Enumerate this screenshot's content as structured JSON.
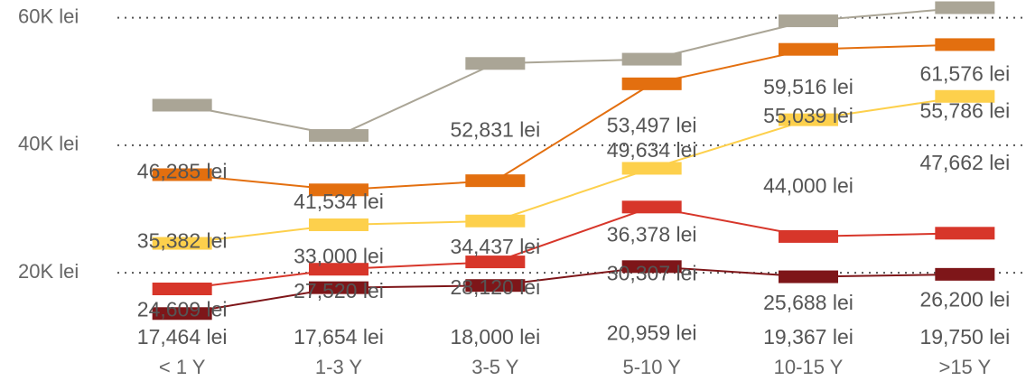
{
  "chart_data": {
    "type": "line",
    "categories": [
      "< 1 Y",
      "1-3 Y",
      "3-5 Y",
      "5-10 Y",
      "10-15 Y",
      ">15 Y"
    ],
    "series": [
      {
        "color": "#aaa596",
        "values": [
          46285,
          41534,
          52831,
          53497,
          59516,
          61576
        ],
        "value_labels": [
          "46,285 lei",
          "41,534 lei",
          "52,831 lei",
          "53,497 lei",
          "59,516 lei",
          "61,576 lei"
        ]
      },
      {
        "color": "#e36f0f",
        "values": [
          35382,
          33000,
          34437,
          49634,
          55039,
          55786
        ],
        "value_labels": [
          "35,382 lei",
          "33,000 lei",
          "34,437 lei",
          "49,634 lei",
          "55,039 lei",
          "55,786 lei"
        ]
      },
      {
        "color": "#fdd04c",
        "values": [
          24609,
          27520,
          28120,
          36378,
          44000,
          47662
        ],
        "value_labels": [
          "24,609 lei",
          "27,520 lei",
          "28,120 lei",
          "36,378 lei",
          "44,000 lei",
          "47,662 lei"
        ]
      },
      {
        "color": "#d7362a",
        "values": [
          17464,
          20550,
          21700,
          30307,
          25688,
          26200
        ],
        "value_labels": [
          "17,464 lei",
          null,
          null,
          "30,307 lei",
          "25,688 lei",
          "26,200 lei"
        ]
      },
      {
        "color": "#7e1619",
        "values": [
          13600,
          17654,
          18000,
          20959,
          19367,
          19750
        ],
        "value_labels": [
          null,
          "17,654 lei",
          "18,000 lei",
          "20,959 lei",
          "19,367 lei",
          "19,750 lei"
        ]
      }
    ],
    "ylim": [
      5000,
      62500
    ],
    "yticks": [
      {
        "value": 20000,
        "label": "20K lei"
      },
      {
        "value": 40000,
        "label": "40K lei"
      },
      {
        "value": 60000,
        "label": "60K lei"
      }
    ],
    "grid": true
  }
}
